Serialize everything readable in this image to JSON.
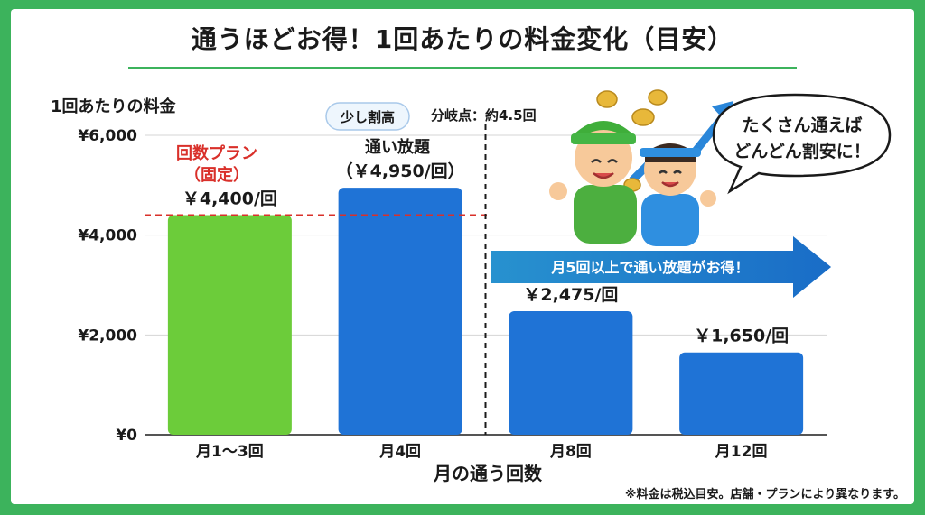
{
  "title": "通うほどお得！1回あたりの料金変化（目安）",
  "footnote": "※料金は税込目安。店舗・プランにより異なります。",
  "colors": {
    "frame": "#3cb35c",
    "fixed_bar": "#6ccc3a",
    "unlimited_bar": "#1f73d6",
    "fixed_line": "#d9302a",
    "arrow": "#1f73d6"
  },
  "annotations": {
    "fixed_plan_line1": "回数プラン",
    "fixed_plan_line2": "（固定）",
    "unlimited_plan": "通い放題",
    "slightly_pricey": "少し割高",
    "breakeven": "分岐点：約4.5回",
    "arrow_text": "月5回以上で通い放題がお得！",
    "bubble_line1": "たくさん通えば",
    "bubble_line2": "どんどん割安に！"
  },
  "chart_data": {
    "type": "bar",
    "title": "通うほどお得！1回あたりの料金変化（目安）",
    "ylabel": "1回あたりの料金",
    "xlabel": "月の通う回数",
    "ylim": [
      0,
      6000
    ],
    "yticks": [
      "¥0",
      "¥2,000",
      "¥4,000",
      "¥6,000"
    ],
    "ytick_values": [
      0,
      2000,
      4000,
      6000
    ],
    "grid": true,
    "categories": [
      "月1〜3回",
      "月4回",
      "月8回",
      "月12回"
    ],
    "values": [
      4400,
      4950,
      2475,
      1650
    ],
    "value_labels": [
      "￥4,400/回",
      "（￥4,950/回）",
      "￥2,475/回",
      "￥1,650/回"
    ],
    "reference_line": {
      "value": 4400
    },
    "breakeven_visits": 4.5
  }
}
